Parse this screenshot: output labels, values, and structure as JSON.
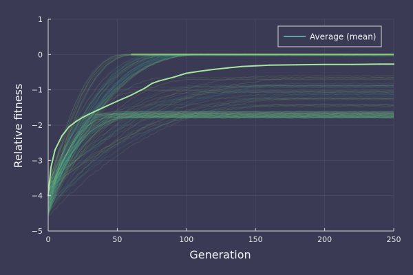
{
  "chart_data": {
    "type": "line",
    "title": "",
    "xlabel": "Generation",
    "ylabel": "Relative fitness",
    "xlim": [
      0,
      250
    ],
    "ylim": [
      -5,
      1
    ],
    "x_ticks": [
      0,
      50,
      100,
      150,
      200,
      250
    ],
    "y_ticks": [
      -5,
      -4,
      -3,
      -2,
      -1,
      0,
      1
    ],
    "x_tick_labels": [
      "0",
      "50",
      "100",
      "150",
      "200",
      "250"
    ],
    "y_tick_labels": [
      "−5",
      "−4",
      "−3",
      "−2",
      "−1",
      "0",
      "1"
    ],
    "grid": true,
    "legend": {
      "position": "top-right",
      "entries": [
        "Average (mean)"
      ]
    },
    "series": [
      {
        "name": "Average (mean)",
        "x": [
          0,
          2,
          5,
          10,
          15,
          20,
          25,
          30,
          40,
          50,
          60,
          70,
          75,
          80,
          90,
          100,
          110,
          120,
          130,
          140,
          150,
          160,
          180,
          200,
          220,
          240,
          250
        ],
        "values": [
          -4.0,
          -3.2,
          -2.7,
          -2.3,
          -2.05,
          -1.9,
          -1.78,
          -1.68,
          -1.5,
          -1.32,
          -1.15,
          -0.95,
          -0.82,
          -0.75,
          -0.65,
          -0.53,
          -0.47,
          -0.42,
          -0.38,
          -0.34,
          -0.32,
          -0.3,
          -0.29,
          -0.28,
          -0.28,
          -0.27,
          -0.27
        ]
      }
    ],
    "colors": {
      "background": "#3a3a54",
      "grid": "#55556e",
      "axis": "#d8d8d8",
      "mean_line": "#a6e6a0",
      "runs": [
        "#2b8a9a",
        "#3aa89a",
        "#5cbf8a",
        "#8ad27a",
        "#b2de6a"
      ]
    }
  }
}
